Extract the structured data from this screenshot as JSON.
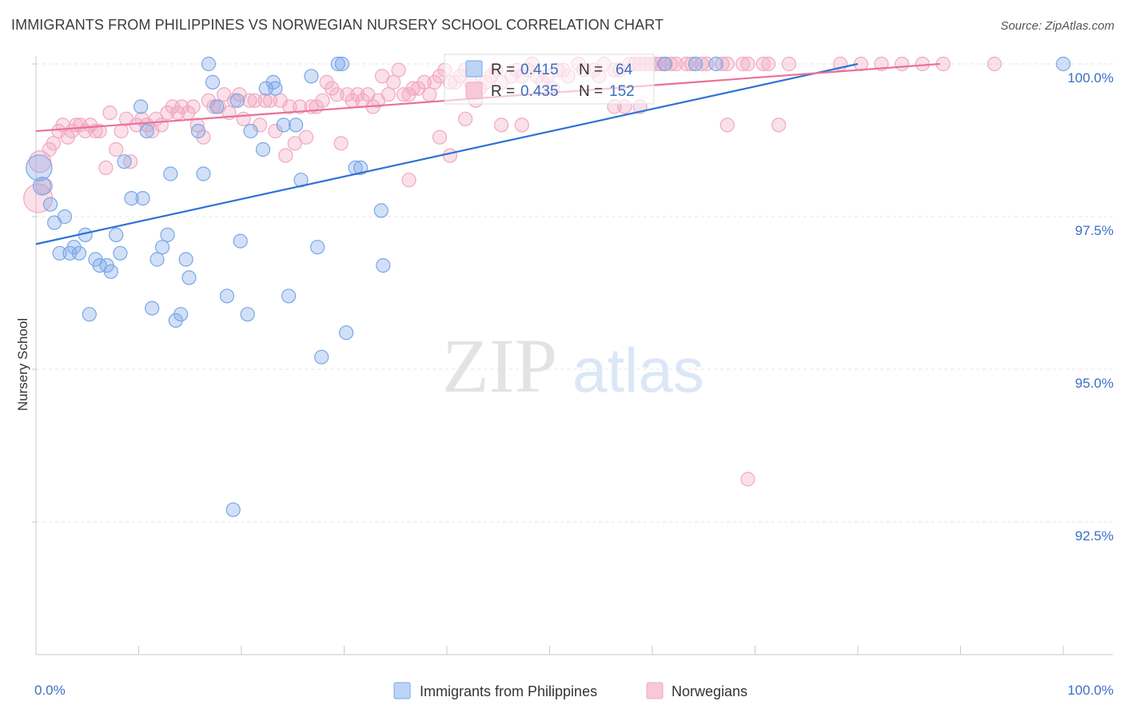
{
  "header": {
    "title": "IMMIGRANTS FROM PHILIPPINES VS NORWEGIAN NURSERY SCHOOL CORRELATION CHART",
    "source": "Source: ZipAtlas.com"
  },
  "watermark": {
    "zip": "ZIP",
    "atlas": "atlas"
  },
  "chart_data": {
    "type": "scatter",
    "title": "IMMIGRANTS FROM PHILIPPINES VS NORWEGIAN NURSERY SCHOOL CORRELATION CHART",
    "xlabel": "",
    "ylabel": "Nursery School",
    "xlim": [
      0,
      100
    ],
    "ylim": [
      90.0,
      100.3
    ],
    "x_tick_labels": [
      "0.0%",
      "100.0%"
    ],
    "y_ticks": [
      {
        "value": 100.0,
        "label": "100.0%"
      },
      {
        "value": 97.5,
        "label": "97.5%"
      },
      {
        "value": 95.0,
        "label": "95.0%"
      },
      {
        "value": 92.5,
        "label": "92.5%"
      }
    ],
    "grid": true,
    "legend_position": "bottom-center",
    "stats": [
      {
        "r_label": "R =",
        "r": "0.415",
        "n_label": "N =",
        "n": "64"
      },
      {
        "r_label": "R =",
        "r": "0.435",
        "n_label": "N =",
        "n": "152"
      }
    ],
    "series": [
      {
        "name": "Immigrants from Philippines",
        "color": "#7aa6e8",
        "line_color": "#2f72d4",
        "trend": {
          "x": [
            0,
            80
          ],
          "y": [
            97.05,
            100.0
          ]
        },
        "points": [
          [
            0.3,
            98.3,
            1.9
          ],
          [
            0.6,
            98.0,
            1.3
          ],
          [
            1.4,
            97.7,
            1
          ],
          [
            1.8,
            97.4,
            1
          ],
          [
            2.3,
            96.9,
            1
          ],
          [
            2.8,
            97.5,
            1
          ],
          [
            3.3,
            96.9,
            1
          ],
          [
            3.7,
            97.0,
            1
          ],
          [
            4.2,
            96.9,
            1
          ],
          [
            4.8,
            97.2,
            1
          ],
          [
            5.2,
            95.9,
            1
          ],
          [
            5.8,
            96.8,
            1
          ],
          [
            6.2,
            96.7,
            1
          ],
          [
            6.9,
            96.7,
            1
          ],
          [
            7.3,
            96.6,
            1
          ],
          [
            7.8,
            97.2,
            1
          ],
          [
            8.2,
            96.9,
            1
          ],
          [
            8.6,
            98.4,
            1
          ],
          [
            9.3,
            97.8,
            1
          ],
          [
            10.2,
            99.3,
            1
          ],
          [
            10.4,
            97.8,
            1
          ],
          [
            10.8,
            98.9,
            1
          ],
          [
            11.3,
            96.0,
            1
          ],
          [
            11.8,
            96.8,
            1
          ],
          [
            12.3,
            97.0,
            1
          ],
          [
            12.8,
            97.2,
            1
          ],
          [
            13.1,
            98.2,
            1
          ],
          [
            13.6,
            95.8,
            1
          ],
          [
            14.1,
            95.9,
            1
          ],
          [
            14.6,
            96.8,
            1
          ],
          [
            14.9,
            96.5,
            1
          ],
          [
            15.8,
            98.9,
            1
          ],
          [
            16.3,
            98.2,
            1
          ],
          [
            16.8,
            100.0,
            1
          ],
          [
            17.2,
            99.7,
            1
          ],
          [
            17.6,
            99.3,
            1
          ],
          [
            18.6,
            96.2,
            1
          ],
          [
            19.2,
            92.7,
            1
          ],
          [
            19.6,
            99.4,
            1
          ],
          [
            19.9,
            97.1,
            1
          ],
          [
            20.6,
            95.9,
            1
          ],
          [
            20.9,
            98.9,
            1
          ],
          [
            22.1,
            98.6,
            1
          ],
          [
            22.4,
            99.6,
            1
          ],
          [
            23.1,
            99.7,
            1
          ],
          [
            23.3,
            99.6,
            1
          ],
          [
            24.1,
            99.0,
            1
          ],
          [
            24.6,
            96.2,
            1
          ],
          [
            25.3,
            99.0,
            1
          ],
          [
            25.8,
            98.1,
            1
          ],
          [
            26.8,
            99.8,
            1
          ],
          [
            27.4,
            97.0,
            1
          ],
          [
            27.8,
            95.2,
            1
          ],
          [
            29.4,
            100.0,
            1
          ],
          [
            29.8,
            100.0,
            1
          ],
          [
            30.2,
            95.6,
            1
          ],
          [
            31.1,
            98.3,
            1
          ],
          [
            31.6,
            98.3,
            1
          ],
          [
            33.6,
            97.6,
            1
          ],
          [
            33.8,
            96.7,
            1
          ],
          [
            61.2,
            100.0,
            1
          ],
          [
            64.2,
            100.0,
            1
          ],
          [
            66.2,
            100.0,
            1
          ],
          [
            100.0,
            100.0,
            1
          ]
        ]
      },
      {
        "name": "Norwegians",
        "color": "#f2a7c1",
        "line_color": "#e8709b",
        "trend": {
          "x": [
            0,
            88
          ],
          "y": [
            98.9,
            100.0
          ]
        },
        "points": [
          [
            0.2,
            97.8,
            2.1
          ],
          [
            0.4,
            98.4,
            1.6
          ],
          [
            0.8,
            98.0,
            1.2
          ],
          [
            1.3,
            98.6,
            1
          ],
          [
            1.7,
            98.7,
            1
          ],
          [
            2.2,
            98.9,
            1
          ],
          [
            2.6,
            99.0,
            1
          ],
          [
            3.1,
            98.8,
            1
          ],
          [
            3.5,
            98.9,
            1
          ],
          [
            3.9,
            99.0,
            1
          ],
          [
            4.3,
            99.0,
            1
          ],
          [
            4.8,
            98.9,
            1
          ],
          [
            5.3,
            99.0,
            1
          ],
          [
            5.8,
            98.9,
            1
          ],
          [
            6.2,
            98.9,
            1
          ],
          [
            6.8,
            98.3,
            1
          ],
          [
            7.2,
            99.2,
            1
          ],
          [
            7.8,
            98.6,
            1
          ],
          [
            8.3,
            98.9,
            1
          ],
          [
            8.8,
            99.1,
            1
          ],
          [
            9.2,
            98.4,
            1
          ],
          [
            9.8,
            99.0,
            1
          ],
          [
            10.3,
            99.1,
            1
          ],
          [
            10.8,
            99.0,
            1
          ],
          [
            11.3,
            98.9,
            1
          ],
          [
            11.7,
            99.1,
            1
          ],
          [
            12.2,
            99.0,
            1
          ],
          [
            12.8,
            99.2,
            1
          ],
          [
            13.3,
            99.3,
            1
          ],
          [
            13.8,
            99.2,
            1
          ],
          [
            14.2,
            99.3,
            1
          ],
          [
            14.8,
            99.2,
            1
          ],
          [
            15.3,
            99.3,
            1
          ],
          [
            15.7,
            99.0,
            1
          ],
          [
            16.3,
            98.8,
            1
          ],
          [
            16.8,
            99.4,
            1
          ],
          [
            17.3,
            99.3,
            1
          ],
          [
            17.8,
            99.3,
            1
          ],
          [
            18.3,
            99.5,
            1
          ],
          [
            18.8,
            99.2,
            1
          ],
          [
            19.3,
            99.4,
            1
          ],
          [
            19.8,
            99.5,
            1
          ],
          [
            20.2,
            99.1,
            1
          ],
          [
            20.8,
            99.4,
            1
          ],
          [
            21.3,
            99.4,
            1
          ],
          [
            21.8,
            99.0,
            1
          ],
          [
            22.3,
            99.4,
            1
          ],
          [
            22.8,
            99.4,
            1
          ],
          [
            23.3,
            98.9,
            1
          ],
          [
            23.8,
            99.4,
            1
          ],
          [
            24.3,
            98.5,
            1
          ],
          [
            24.7,
            99.3,
            1
          ],
          [
            25.2,
            98.7,
            1
          ],
          [
            25.7,
            99.3,
            1
          ],
          [
            26.3,
            98.8,
            1
          ],
          [
            26.8,
            99.3,
            1
          ],
          [
            27.3,
            99.3,
            1
          ],
          [
            27.9,
            99.4,
            1
          ],
          [
            28.3,
            99.7,
            1
          ],
          [
            28.8,
            99.6,
            1
          ],
          [
            29.3,
            99.5,
            1
          ],
          [
            29.7,
            98.7,
            1
          ],
          [
            30.3,
            99.5,
            1
          ],
          [
            30.8,
            99.4,
            1
          ],
          [
            31.3,
            99.5,
            1
          ],
          [
            31.8,
            99.4,
            1
          ],
          [
            32.3,
            99.5,
            1
          ],
          [
            32.8,
            99.3,
            1
          ],
          [
            33.3,
            99.4,
            1
          ],
          [
            33.7,
            99.8,
            1
          ],
          [
            34.3,
            99.5,
            1
          ],
          [
            34.8,
            99.7,
            1
          ],
          [
            35.3,
            99.9,
            1
          ],
          [
            35.8,
            99.5,
            1
          ],
          [
            36.3,
            99.5,
            1
          ],
          [
            36.7,
            99.6,
            1
          ],
          [
            37.2,
            99.6,
            1
          ],
          [
            37.8,
            99.7,
            1
          ],
          [
            38.3,
            99.5,
            1
          ],
          [
            38.8,
            99.7,
            1
          ],
          [
            39.3,
            99.8,
            1
          ],
          [
            39.8,
            99.9,
            1
          ],
          [
            40.3,
            99.7,
            1
          ],
          [
            40.8,
            99.7,
            1
          ],
          [
            41.3,
            99.8,
            1
          ],
          [
            41.8,
            99.9,
            1
          ],
          [
            42.3,
            99.7,
            1
          ],
          [
            42.8,
            99.4,
            1
          ],
          [
            43.2,
            99.6,
            1
          ],
          [
            43.8,
            99.7,
            1
          ],
          [
            44.3,
            99.8,
            1
          ],
          [
            44.8,
            99.9,
            1
          ],
          [
            45.3,
            99.7,
            1
          ],
          [
            46.3,
            99.8,
            1
          ],
          [
            46.8,
            99.9,
            1
          ],
          [
            47.3,
            99.8,
            1
          ],
          [
            47.9,
            99.9,
            1
          ],
          [
            48.3,
            100.0,
            1
          ],
          [
            48.8,
            99.8,
            1
          ],
          [
            49.3,
            99.7,
            1
          ],
          [
            49.8,
            99.8,
            1
          ],
          [
            50.3,
            99.6,
            1
          ],
          [
            50.8,
            99.9,
            1
          ],
          [
            51.3,
            99.9,
            1
          ],
          [
            51.8,
            99.8,
            1
          ],
          [
            52.8,
            100.0,
            1
          ],
          [
            53.3,
            99.9,
            1
          ],
          [
            54.3,
            99.9,
            1
          ],
          [
            54.8,
            99.8,
            1
          ],
          [
            55.3,
            100.0,
            1
          ],
          [
            56.3,
            99.9,
            1
          ],
          [
            56.8,
            99.9,
            1
          ],
          [
            57.8,
            100.0,
            1
          ],
          [
            58.3,
            100.0,
            1
          ],
          [
            58.8,
            100.0,
            1
          ],
          [
            59.3,
            100.0,
            1
          ],
          [
            59.8,
            100.0,
            1
          ],
          [
            60.3,
            100.0,
            1
          ],
          [
            60.8,
            100.0,
            1
          ],
          [
            61.3,
            100.0,
            1
          ],
          [
            61.8,
            100.0,
            1
          ],
          [
            62.3,
            100.0,
            1
          ],
          [
            63.3,
            100.0,
            1
          ],
          [
            63.8,
            100.0,
            1
          ],
          [
            64.8,
            100.0,
            1
          ],
          [
            65.3,
            100.0,
            1
          ],
          [
            66.8,
            100.0,
            1
          ],
          [
            67.3,
            100.0,
            1
          ],
          [
            68.8,
            100.0,
            1
          ],
          [
            69.3,
            100.0,
            1
          ],
          [
            70.8,
            100.0,
            1
          ],
          [
            71.3,
            100.0,
            1
          ],
          [
            73.3,
            100.0,
            1
          ],
          [
            78.3,
            100.0,
            1
          ],
          [
            80.3,
            100.0,
            1
          ],
          [
            82.3,
            100.0,
            1
          ],
          [
            84.3,
            100.0,
            1
          ],
          [
            86.3,
            100.0,
            1
          ],
          [
            88.3,
            100.0,
            1
          ],
          [
            93.3,
            100.0,
            1
          ],
          [
            36.3,
            98.1,
            1
          ],
          [
            39.3,
            98.8,
            1
          ],
          [
            40.3,
            98.5,
            1
          ],
          [
            56.3,
            99.3,
            1
          ],
          [
            58.8,
            99.3,
            1
          ],
          [
            45.3,
            99.0,
            1
          ],
          [
            41.8,
            99.1,
            1
          ],
          [
            47.3,
            99.0,
            1
          ],
          [
            72.3,
            99.0,
            1
          ],
          [
            67.3,
            99.0,
            1
          ],
          [
            57.3,
            99.3,
            1
          ],
          [
            69.3,
            93.2,
            1
          ]
        ]
      }
    ]
  }
}
